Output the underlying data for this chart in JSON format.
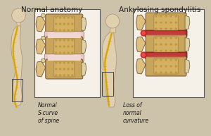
{
  "title_left": "Normal anatomy",
  "title_right": "Ankylosing spondylitis",
  "label_left": "Normal\nS-curve\nof spine",
  "label_right": "Loss of\nnormal\ncurvature",
  "bg_color": "#cdc3aa",
  "vertebra_tan": "#c8a55a",
  "vertebra_light": "#ddc080",
  "disc_pink": "#e8c8c0",
  "disc_pink2": "#d4a0a0",
  "inflamed_red": "#b83030",
  "inflamed_bright": "#cc2020",
  "nerve_yellow": "#d4a010",
  "nerve_yellow2": "#e8c030",
  "bone_cream": "#ddd0a0",
  "spongy_tan": "#b8903a",
  "spongy_light": "#d4b060",
  "skin_outline": "#b09878",
  "skin_fill": "#e0d0b0",
  "skin_fill2": "#cfc0a0",
  "box_fill": "#f0ece0",
  "outline_dark": "#705030",
  "outline_med": "#907850",
  "text_dark": "#1a1a1a",
  "white_ish": "#f5f0e8",
  "title_fs": 7.5,
  "label_fs": 5.5
}
